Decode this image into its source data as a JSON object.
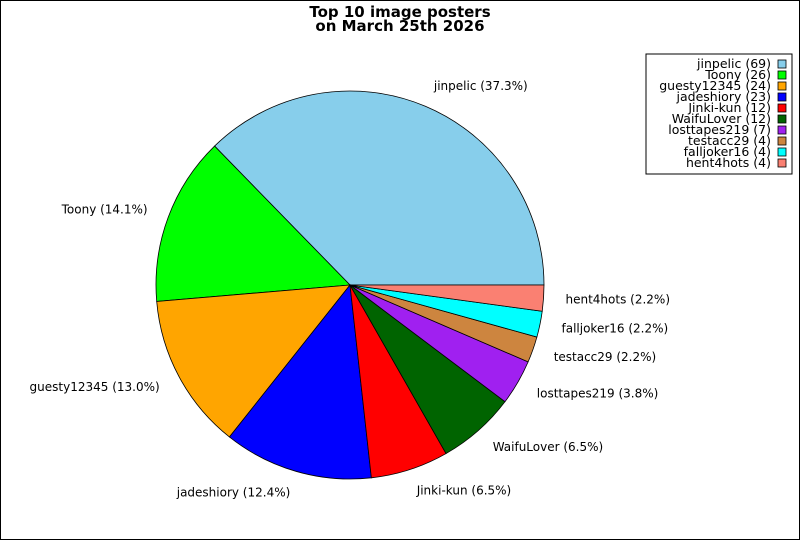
{
  "chart_data": {
    "type": "pie",
    "title_lines": [
      "Top 10 image posters",
      "on March 25th 2026"
    ],
    "slices": [
      {
        "name": "jinpelic",
        "value": 69,
        "percent": "37.3%",
        "color": "#87ceeb",
        "legend": "jinpelic (69)",
        "label": "jinpelic (37.3%)"
      },
      {
        "name": "Toony",
        "value": 26,
        "percent": "14.1%",
        "color": "#00ff00",
        "legend": "Toony (26)",
        "label": "Toony (14.1%)"
      },
      {
        "name": "guesty12345",
        "value": 24,
        "percent": "13.0%",
        "color": "#ffa500",
        "legend": "guesty12345 (24)",
        "label": "guesty12345 (13.0%)"
      },
      {
        "name": "jadeshiory",
        "value": 23,
        "percent": "12.4%",
        "color": "#0000ff",
        "legend": "jadeshiory (23)",
        "label": "jadeshiory (12.4%)"
      },
      {
        "name": "Jinki-kun",
        "value": 12,
        "percent": "6.5%",
        "color": "#ff0000",
        "legend": "Jinki-kun (12)",
        "label": "Jinki-kun (6.5%)"
      },
      {
        "name": "WaifuLover",
        "value": 12,
        "percent": "6.5%",
        "color": "#006400",
        "legend": "WaifuLover (12)",
        "label": "WaifuLover (6.5%)"
      },
      {
        "name": "losttapes219",
        "value": 7,
        "percent": "3.8%",
        "color": "#a020f0",
        "legend": "losttapes219 (7)",
        "label": "losttapes219 (3.8%)"
      },
      {
        "name": "testacc29",
        "value": 4,
        "percent": "2.2%",
        "color": "#cd853f",
        "legend": "testacc29 (4)",
        "label": "testacc29 (2.2%)"
      },
      {
        "name": "falljoker16",
        "value": 4,
        "percent": "2.2%",
        "color": "#00ffff",
        "legend": "falljoker16 (4)",
        "label": "falljoker16 (2.2%)"
      },
      {
        "name": "hent4hots",
        "value": 4,
        "percent": "2.2%",
        "color": "#fa8072",
        "legend": "hent4hots (4)",
        "label": "hent4hots (2.2%)"
      }
    ],
    "start_angle_deg": 0,
    "direction": "counterclockwise",
    "legend_placement": "top-right"
  }
}
